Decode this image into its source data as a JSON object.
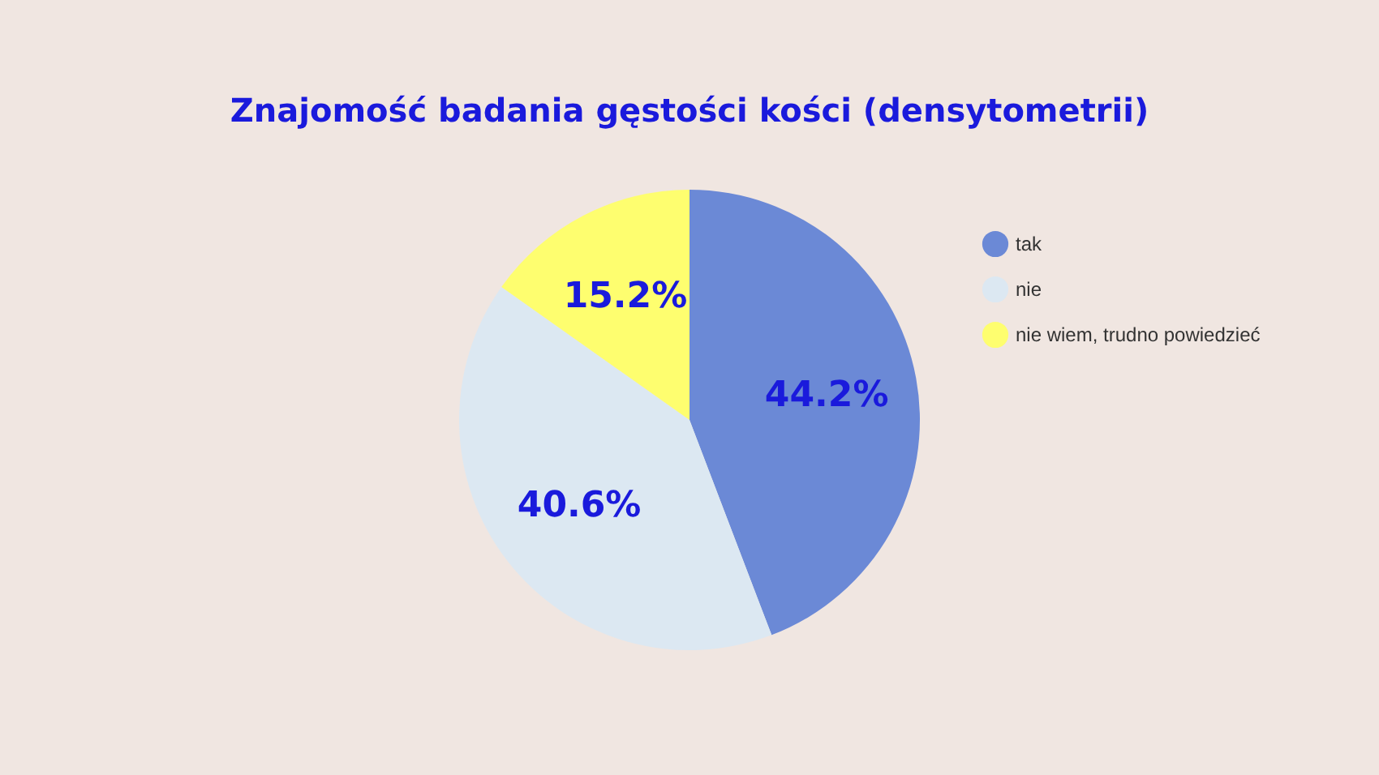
{
  "chart_data": {
    "type": "pie",
    "title": "Znajomość badania gęstości kości (densytometrii)",
    "categories": [
      "tak",
      "nie",
      "nie wiem, trudno powiedzieć"
    ],
    "values": [
      44.2,
      40.6,
      15.2
    ],
    "colors": [
      "#6b89d6",
      "#dce8f2",
      "#fefe6f"
    ],
    "value_labels": [
      "44.2%",
      "40.6%",
      "15.2%"
    ],
    "legend": "right"
  }
}
